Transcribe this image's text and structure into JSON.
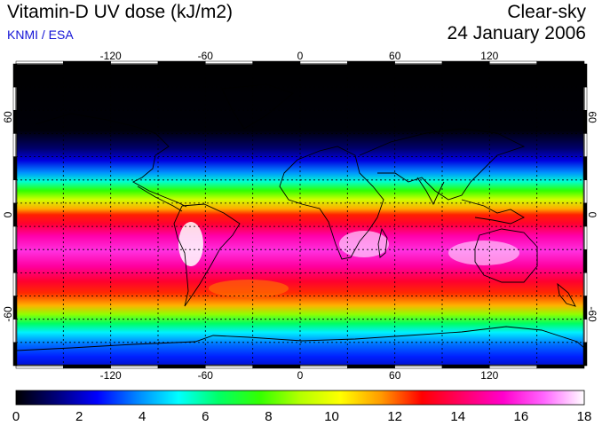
{
  "header": {
    "title": "Vitamin-D UV dose (kJ/m2)",
    "credit": "KNMI / ESA",
    "condition": "Clear-sky",
    "date": "24 January 2006"
  },
  "axes": {
    "lon_ticks": [
      "-120",
      "-60",
      "0",
      "60",
      "120"
    ],
    "lon_values": [
      -120,
      -60,
      0,
      60,
      120
    ],
    "lat_ticks": [
      "60",
      "0",
      "-60"
    ],
    "lat_values": [
      60,
      0,
      -60
    ]
  },
  "colorbar": {
    "labels": [
      "0",
      "2",
      "4",
      "6",
      "8",
      "10",
      "12",
      "14",
      "16",
      "18"
    ],
    "min": 0,
    "max": 18,
    "colors": [
      "#000000",
      "#00007a",
      "#0000ff",
      "#0087ff",
      "#00ffff",
      "#00ff66",
      "#33ff00",
      "#b4ff00",
      "#ffff00",
      "#ff9900",
      "#ff0000",
      "#ff0066",
      "#ff00cc",
      "#ff66ff",
      "#ffffff"
    ]
  },
  "map_colors": {
    "ocean_dark": "#000010",
    "land_line": "#000000",
    "grid": "#000000"
  }
}
